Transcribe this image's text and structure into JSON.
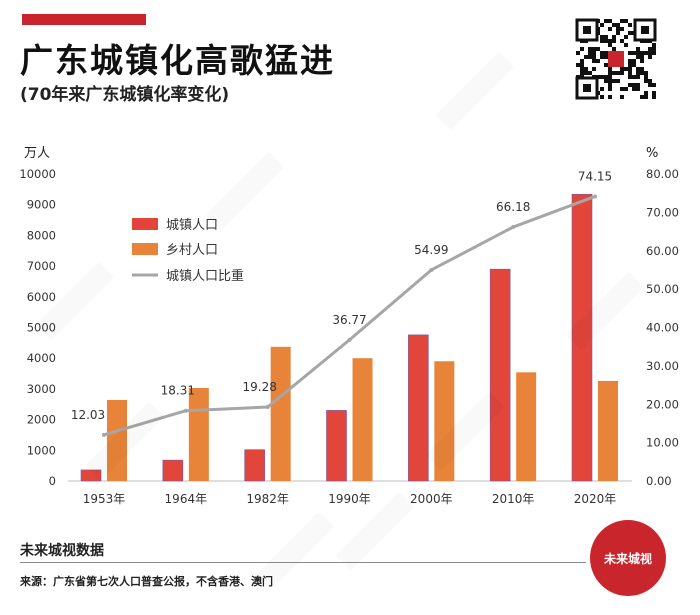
{
  "header": {
    "title": "广东城镇化高歌猛进",
    "subtitle": "(70年来广东城镇化率变化)"
  },
  "footer": {
    "brand": "未来城视数据",
    "source": "来源：广东省第七次人口普查公报，不含香港、澳门",
    "seal_text": "未来城视"
  },
  "colors": {
    "accent": "#c8252c",
    "urban_bar": "#e2453a",
    "rural_bar": "#e8843a",
    "ratio_line": "#a6a6a6"
  },
  "chart_data": {
    "type": "bar",
    "categories": [
      "1953年",
      "1964年",
      "1982年",
      "1990年",
      "2000年",
      "2010年",
      "2020年"
    ],
    "left_axis_unit": "万人",
    "right_axis_unit": "%",
    "ylim_left": [
      0,
      10000
    ],
    "ylim_right": [
      0,
      80
    ],
    "left_ticks": [
      "0",
      "1000",
      "2000",
      "3000",
      "4000",
      "5000",
      "6000",
      "7000",
      "8000",
      "9000",
      "10000"
    ],
    "right_ticks": [
      "0.00",
      "10.00",
      "20.00",
      "30.00",
      "40.00",
      "50.00",
      "60.00",
      "70.00",
      "80.00"
    ],
    "grid": false,
    "legend_position": "top-left",
    "series": [
      {
        "name": "城镇人口",
        "kind": "bar",
        "axis": "left",
        "values": [
          360,
          680,
          1020,
          2300,
          4760,
          6900,
          9340
        ]
      },
      {
        "name": "乡村人口",
        "kind": "bar",
        "axis": "left",
        "values": [
          2640,
          3030,
          4370,
          4000,
          3900,
          3540,
          3260
        ]
      },
      {
        "name": "城镇人口比重",
        "kind": "line",
        "axis": "right",
        "values": [
          12.03,
          18.31,
          19.28,
          36.77,
          54.99,
          66.18,
          74.15
        ]
      }
    ],
    "data_labels": [
      "12.03",
      "18.31",
      "19.28",
      "36.77",
      "54.99",
      "66.18",
      "74.15"
    ]
  }
}
